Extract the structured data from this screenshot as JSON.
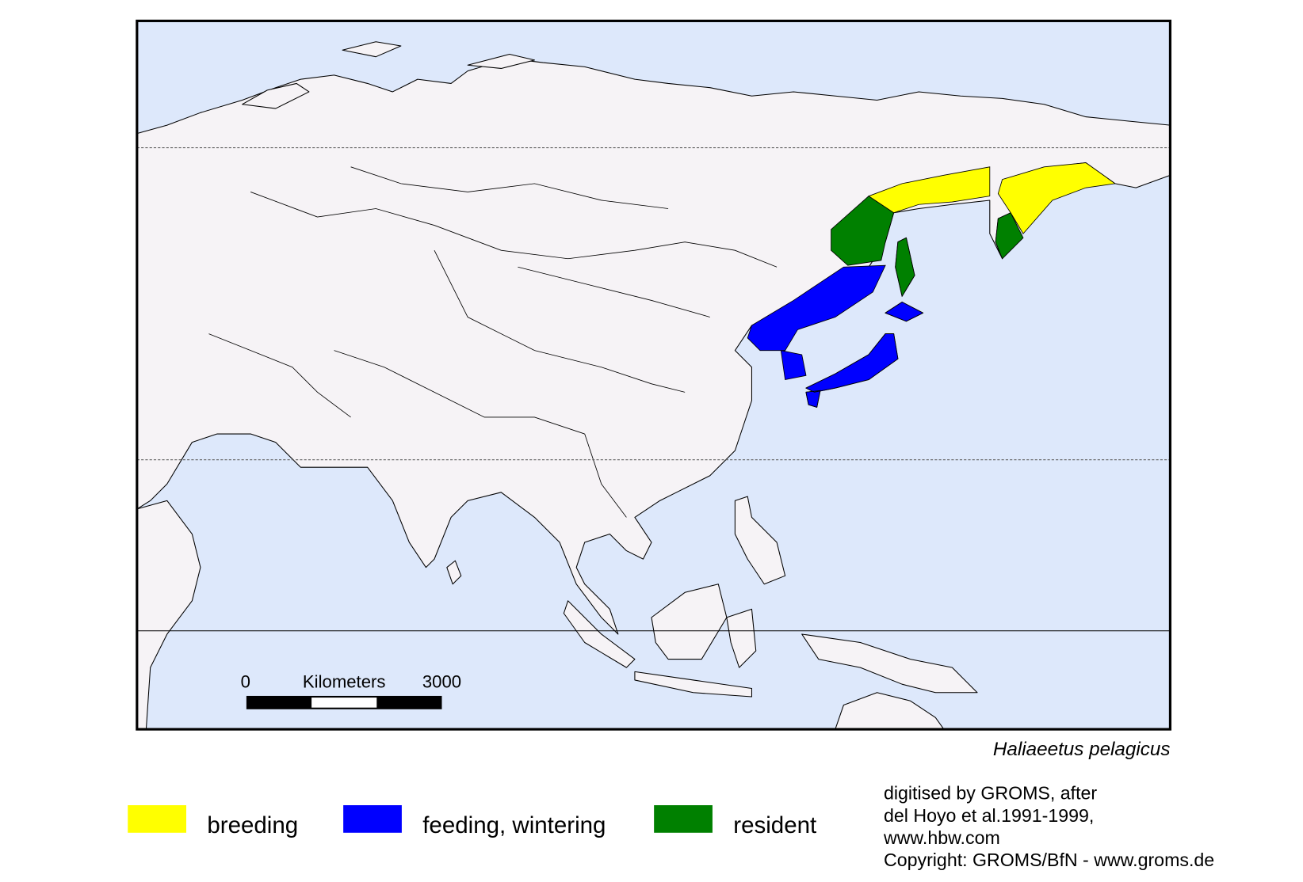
{
  "map": {
    "species": "Haliaeetus pelagicus",
    "scale_bar": {
      "start": 0,
      "unit": "Kilometers",
      "end": 3000
    },
    "legend": [
      {
        "label": "breeding",
        "color": "#ffff00"
      },
      {
        "label": "feeding, wintering",
        "color": "#0000ff"
      },
      {
        "label": "resident",
        "color": "#008000"
      }
    ],
    "credits": [
      "digitised by GROMS, after",
      "del Hoyo et al.1991-1999,",
      "www.hbw.com",
      "Copyright: GROMS/BfN - www.groms.de"
    ]
  }
}
